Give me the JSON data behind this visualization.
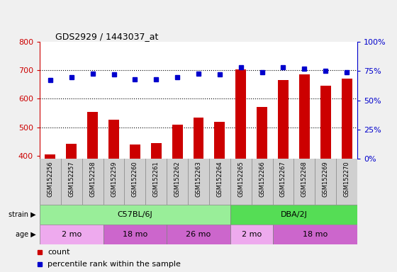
{
  "title": "GDS2929 / 1443037_at",
  "samples": [
    "GSM152256",
    "GSM152257",
    "GSM152258",
    "GSM152259",
    "GSM152260",
    "GSM152261",
    "GSM152262",
    "GSM152263",
    "GSM152264",
    "GSM152265",
    "GSM152266",
    "GSM152267",
    "GSM152268",
    "GSM152269",
    "GSM152270"
  ],
  "counts": [
    405,
    443,
    554,
    527,
    440,
    444,
    510,
    534,
    520,
    703,
    572,
    667,
    685,
    645,
    672
  ],
  "percentiles": [
    67,
    70,
    73,
    72,
    68,
    68,
    70,
    73,
    72,
    78,
    74,
    78,
    77,
    75,
    74
  ],
  "ylim_left": [
    390,
    800
  ],
  "ylim_right": [
    0,
    100
  ],
  "yticks_left": [
    400,
    500,
    600,
    700,
    800
  ],
  "yticks_right": [
    0,
    25,
    50,
    75,
    100
  ],
  "hlines": [
    500,
    600,
    700
  ],
  "bar_color": "#cc0000",
  "dot_color": "#0000cc",
  "bar_width": 0.5,
  "strain_groups": [
    {
      "label": "C57BL/6J",
      "start": 0,
      "end": 8,
      "color": "#99ee99"
    },
    {
      "label": "DBA/2J",
      "start": 9,
      "end": 14,
      "color": "#55dd55"
    }
  ],
  "age_groups": [
    {
      "label": "2 mo",
      "start": 0,
      "end": 2,
      "color": "#eeaaee"
    },
    {
      "label": "18 mo",
      "start": 3,
      "end": 5,
      "color": "#cc66cc"
    },
    {
      "label": "26 mo",
      "start": 6,
      "end": 8,
      "color": "#cc66cc"
    },
    {
      "label": "2 mo",
      "start": 9,
      "end": 10,
      "color": "#eeaaee"
    },
    {
      "label": "18 mo",
      "start": 11,
      "end": 14,
      "color": "#cc66cc"
    }
  ],
  "legend_items": [
    {
      "label": "count",
      "color": "#cc0000"
    },
    {
      "label": "percentile rank within the sample",
      "color": "#0000cc"
    }
  ],
  "tick_color_left": "#cc0000",
  "tick_color_right": "#0000cc",
  "xlabel_bg": "#d0d0d0",
  "plot_bg": "#ffffff",
  "fig_bg": "#f0f0f0"
}
